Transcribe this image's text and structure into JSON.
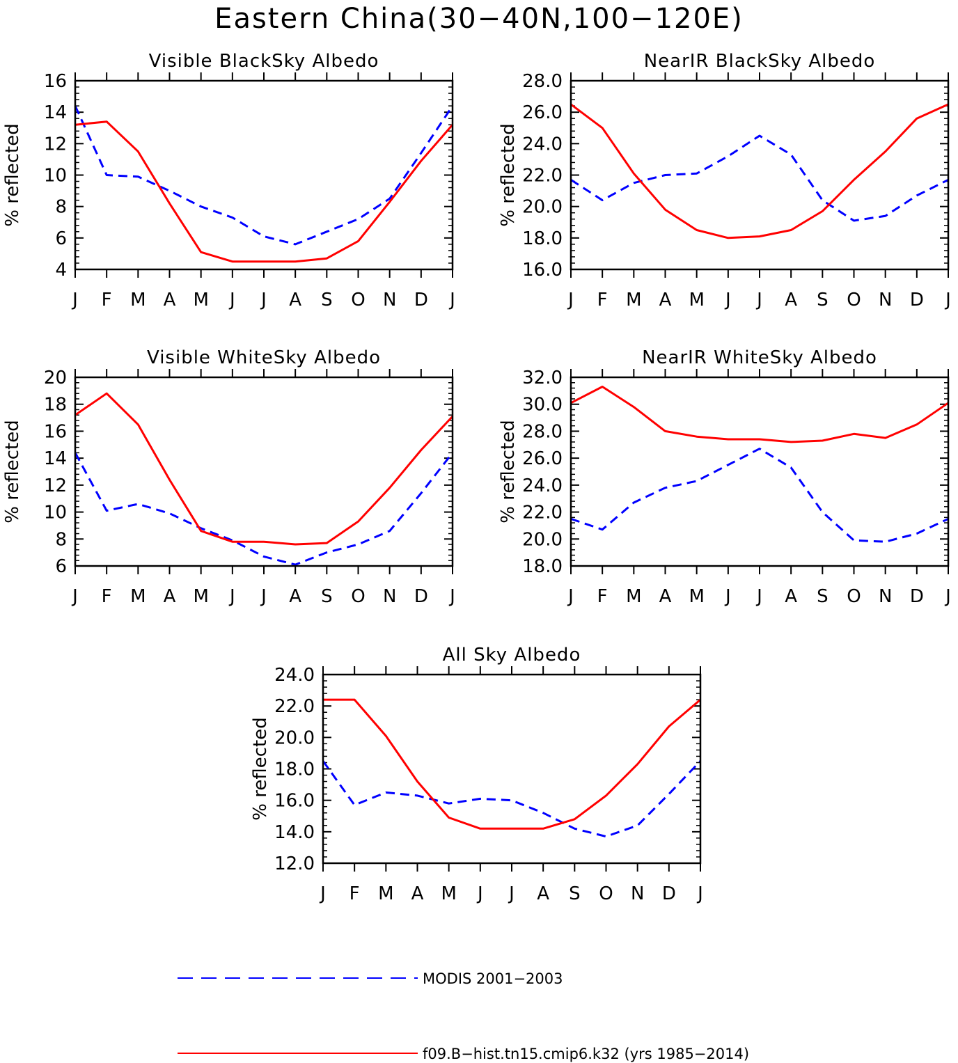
{
  "figure": {
    "title": "Eastern China(30−40N,100−120E)"
  },
  "colors": {
    "modis": "#0000ff",
    "model": "#ff0000",
    "axis": "#000000"
  },
  "legend": {
    "modis_label": "MODIS 2001−2003",
    "model_label": "f09.B−hist.tn15.cmip6.k32 (yrs 1985−2014)"
  },
  "chart_data": [
    {
      "type": "line",
      "title": "Visible BlackSky Albedo",
      "ylabel": "% reflected",
      "x": [
        "J",
        "F",
        "M",
        "A",
        "M",
        "J",
        "J",
        "A",
        "S",
        "O",
        "N",
        "D",
        "J"
      ],
      "ylim": [
        4,
        16
      ],
      "yticks": [
        "4",
        "6",
        "8",
        "10",
        "12",
        "14",
        "16"
      ],
      "minor_per_major": 4,
      "series": [
        {
          "name": "MODIS 2001−2003",
          "style": "dashed",
          "values": [
            14.4,
            10.0,
            9.9,
            9.0,
            8.0,
            7.3,
            6.1,
            5.6,
            6.4,
            7.2,
            8.5,
            11.4,
            14.4
          ]
        },
        {
          "name": "f09.B−hist.tn15.cmip6.k32 (yrs 1985−2014)",
          "style": "solid",
          "values": [
            13.2,
            13.4,
            11.5,
            8.2,
            5.1,
            4.5,
            4.5,
            4.5,
            4.7,
            5.8,
            8.3,
            10.9,
            13.2
          ]
        }
      ]
    },
    {
      "type": "line",
      "title": "NearIR BlackSky Albedo",
      "ylabel": "% reflected",
      "x": [
        "J",
        "F",
        "M",
        "A",
        "M",
        "J",
        "J",
        "A",
        "S",
        "O",
        "N",
        "D",
        "J"
      ],
      "ylim": [
        16,
        28
      ],
      "yticks": [
        "16.0",
        "18.0",
        "20.0",
        "22.0",
        "24.0",
        "26.0",
        "28.0"
      ],
      "minor_per_major": 4,
      "series": [
        {
          "name": "MODIS 2001−2003",
          "style": "dashed",
          "values": [
            21.7,
            20.4,
            21.5,
            22.0,
            22.1,
            23.2,
            24.5,
            23.3,
            20.4,
            19.1,
            19.4,
            20.7,
            21.7
          ]
        },
        {
          "name": "f09.B−hist.tn15.cmip6.k32 (yrs 1985−2014)",
          "style": "solid",
          "values": [
            26.5,
            25.0,
            22.1,
            19.8,
            18.5,
            18.0,
            18.1,
            18.5,
            19.7,
            21.7,
            23.5,
            25.6,
            26.5
          ]
        }
      ]
    },
    {
      "type": "line",
      "title": "Visible WhiteSky Albedo",
      "ylabel": "% reflected",
      "x": [
        "J",
        "F",
        "M",
        "A",
        "M",
        "J",
        "J",
        "A",
        "S",
        "O",
        "N",
        "D",
        "J"
      ],
      "ylim": [
        6,
        20
      ],
      "yticks": [
        "6",
        "8",
        "10",
        "12",
        "14",
        "16",
        "18",
        "20"
      ],
      "minor_per_major": 4,
      "series": [
        {
          "name": "MODIS 2001−2003",
          "style": "dashed",
          "values": [
            14.4,
            10.1,
            10.6,
            9.9,
            8.8,
            7.9,
            6.7,
            6.1,
            7.0,
            7.6,
            8.6,
            11.4,
            14.4
          ]
        },
        {
          "name": "f09.B−hist.tn15.cmip6.k32 (yrs 1985−2014)",
          "style": "solid",
          "values": [
            17.2,
            18.8,
            16.5,
            12.4,
            8.6,
            7.8,
            7.8,
            7.6,
            7.7,
            9.3,
            11.8,
            14.6,
            17.1
          ]
        }
      ]
    },
    {
      "type": "line",
      "title": "NearIR WhiteSky Albedo",
      "ylabel": "% reflected",
      "x": [
        "J",
        "F",
        "M",
        "A",
        "M",
        "J",
        "J",
        "A",
        "S",
        "O",
        "N",
        "D",
        "J"
      ],
      "ylim": [
        18,
        32
      ],
      "yticks": [
        "18.0",
        "20.0",
        "22.0",
        "24.0",
        "26.0",
        "28.0",
        "30.0",
        "32.0"
      ],
      "minor_per_major": 4,
      "series": [
        {
          "name": "MODIS 2001−2003",
          "style": "dashed",
          "values": [
            21.5,
            20.7,
            22.7,
            23.8,
            24.3,
            25.5,
            26.7,
            25.3,
            22.0,
            19.9,
            19.8,
            20.4,
            21.5
          ]
        },
        {
          "name": "f09.B−hist.tn15.cmip6.k32 (yrs 1985−2014)",
          "style": "solid",
          "values": [
            30.1,
            31.3,
            29.8,
            28.0,
            27.6,
            27.4,
            27.4,
            27.2,
            27.3,
            27.8,
            27.5,
            28.5,
            30.1
          ]
        }
      ]
    },
    {
      "type": "line",
      "title": "All Sky Albedo",
      "ylabel": "% reflected",
      "x": [
        "J",
        "F",
        "M",
        "A",
        "M",
        "J",
        "J",
        "A",
        "S",
        "O",
        "N",
        "D",
        "J"
      ],
      "ylim": [
        12,
        24
      ],
      "yticks": [
        "12.0",
        "14.0",
        "16.0",
        "18.0",
        "20.0",
        "22.0",
        "24.0"
      ],
      "minor_per_major": 4,
      "series": [
        {
          "name": "MODIS 2001−2003",
          "style": "dashed",
          "values": [
            18.5,
            15.7,
            16.5,
            16.3,
            15.8,
            16.1,
            16.0,
            15.2,
            14.2,
            13.7,
            14.4,
            16.4,
            18.5
          ]
        },
        {
          "name": "f09.B−hist.tn15.cmip6.k32 (yrs 1985−2014)",
          "style": "solid",
          "values": [
            22.4,
            22.4,
            20.1,
            17.2,
            14.9,
            14.2,
            14.2,
            14.2,
            14.8,
            16.3,
            18.3,
            20.7,
            22.4
          ]
        }
      ]
    }
  ]
}
